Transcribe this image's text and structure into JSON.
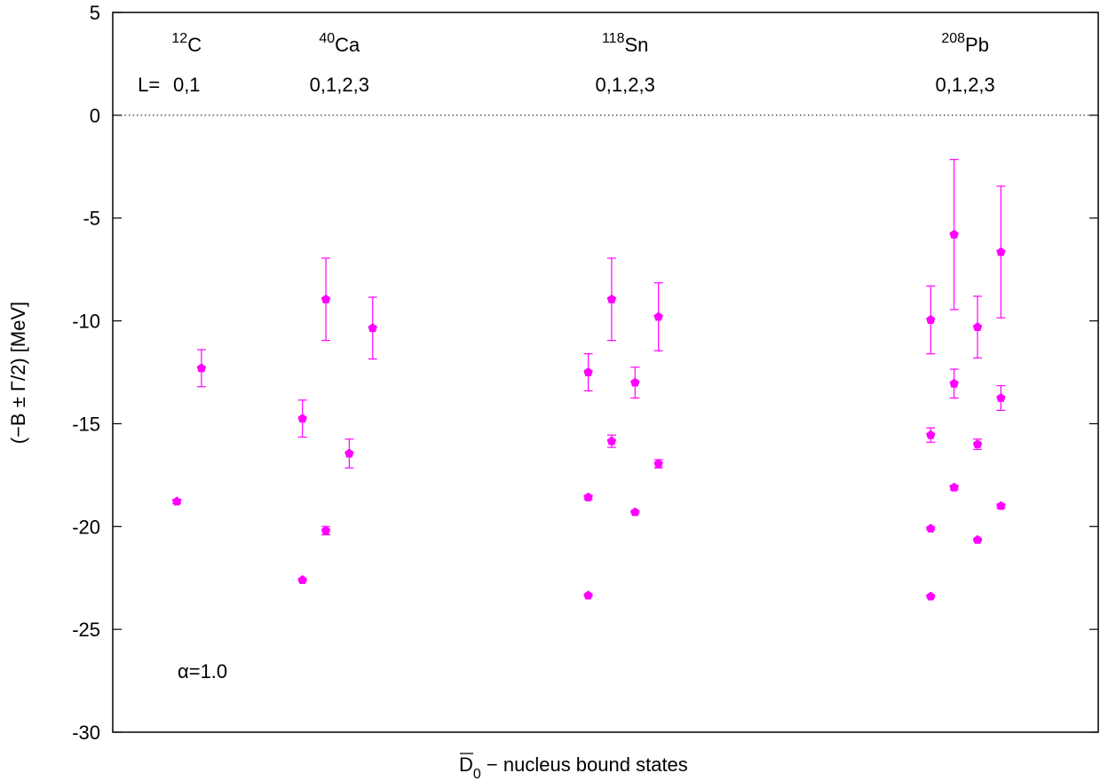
{
  "chart_data": {
    "type": "scatter",
    "title": "",
    "xlabel": "D̄₀ − nucleus bound states",
    "xlabel_main": "D",
    "xlabel_sub": "0",
    "xlabel_rest": " − nucleus bound states",
    "ylabel": "(−B ± Γ/2)  [MeV]",
    "ylim": [
      -30,
      5
    ],
    "yticks": [
      5,
      0,
      -5,
      -10,
      -15,
      -20,
      -25,
      -30
    ],
    "ytick_labels": [
      "5",
      "0",
      "-5",
      "-10",
      "-15",
      "-20",
      "-25",
      "-30"
    ],
    "xlim": [
      0,
      40
    ],
    "grid": false,
    "reference_line": {
      "y": 0,
      "style": "dotted"
    },
    "marker_color": "#ff00ff",
    "nuclei": [
      {
        "mass": "12",
        "symbol": "C",
        "L_prefix": "L=",
        "L_values": "0,1",
        "x": 3.0
      },
      {
        "mass": "40",
        "symbol": "Ca",
        "L_prefix": "",
        "L_values": "0,1,2,3",
        "x": 9.2
      },
      {
        "mass": "118",
        "symbol": "Sn",
        "L_prefix": "",
        "L_values": "0,1,2,3",
        "x": 20.8
      },
      {
        "mass": "208",
        "symbol": "Pb",
        "L_prefix": "",
        "L_values": "0,1,2,3",
        "x": 34.6
      }
    ],
    "annotation": "α=1.0",
    "series": [
      {
        "points": [
          {
            "x": 2.6,
            "y": -18.78,
            "err": 0.1
          },
          {
            "x": 3.6,
            "y": -12.3,
            "err": 0.9
          }
        ]
      },
      {
        "points": [
          {
            "x": 7.7,
            "y": -22.6,
            "err": 0.05
          },
          {
            "x": 7.7,
            "y": -14.75,
            "err": 0.9
          },
          {
            "x": 8.65,
            "y": -20.2,
            "err": 0.2
          },
          {
            "x": 8.65,
            "y": -8.95,
            "err": 2.0
          },
          {
            "x": 9.6,
            "y": -16.45,
            "err": 0.7
          },
          {
            "x": 10.55,
            "y": -10.35,
            "err": 1.5
          }
        ]
      },
      {
        "points": [
          {
            "x": 19.3,
            "y": -23.35,
            "err": 0.05
          },
          {
            "x": 19.3,
            "y": -18.58,
            "err": 0.1
          },
          {
            "x": 19.3,
            "y": -12.5,
            "err": 0.9
          },
          {
            "x": 20.25,
            "y": -15.85,
            "err": 0.3
          },
          {
            "x": 20.25,
            "y": -8.95,
            "err": 2.0
          },
          {
            "x": 21.2,
            "y": -19.3,
            "err": 0.05
          },
          {
            "x": 21.2,
            "y": -13.0,
            "err": 0.75
          },
          {
            "x": 22.15,
            "y": -16.95,
            "err": 0.2
          },
          {
            "x": 22.15,
            "y": -9.8,
            "err": 1.65
          }
        ]
      },
      {
        "points": [
          {
            "x": 33.2,
            "y": -23.4,
            "err": 0.05
          },
          {
            "x": 33.2,
            "y": -20.1,
            "err": 0.05
          },
          {
            "x": 33.2,
            "y": -15.55,
            "err": 0.35
          },
          {
            "x": 33.2,
            "y": -9.95,
            "err": 1.65
          },
          {
            "x": 34.15,
            "y": -18.1,
            "err": 0.1
          },
          {
            "x": 34.15,
            "y": -13.05,
            "err": 0.7
          },
          {
            "x": 34.15,
            "y": -5.8,
            "err": 3.65
          },
          {
            "x": 35.1,
            "y": -20.65,
            "err": 0.05
          },
          {
            "x": 35.1,
            "y": -16.0,
            "err": 0.25
          },
          {
            "x": 35.1,
            "y": -10.3,
            "err": 1.5
          },
          {
            "x": 36.05,
            "y": -19.0,
            "err": 0.1
          },
          {
            "x": 36.05,
            "y": -13.75,
            "err": 0.6
          },
          {
            "x": 36.05,
            "y": -6.65,
            "err": 3.2
          }
        ]
      }
    ]
  }
}
